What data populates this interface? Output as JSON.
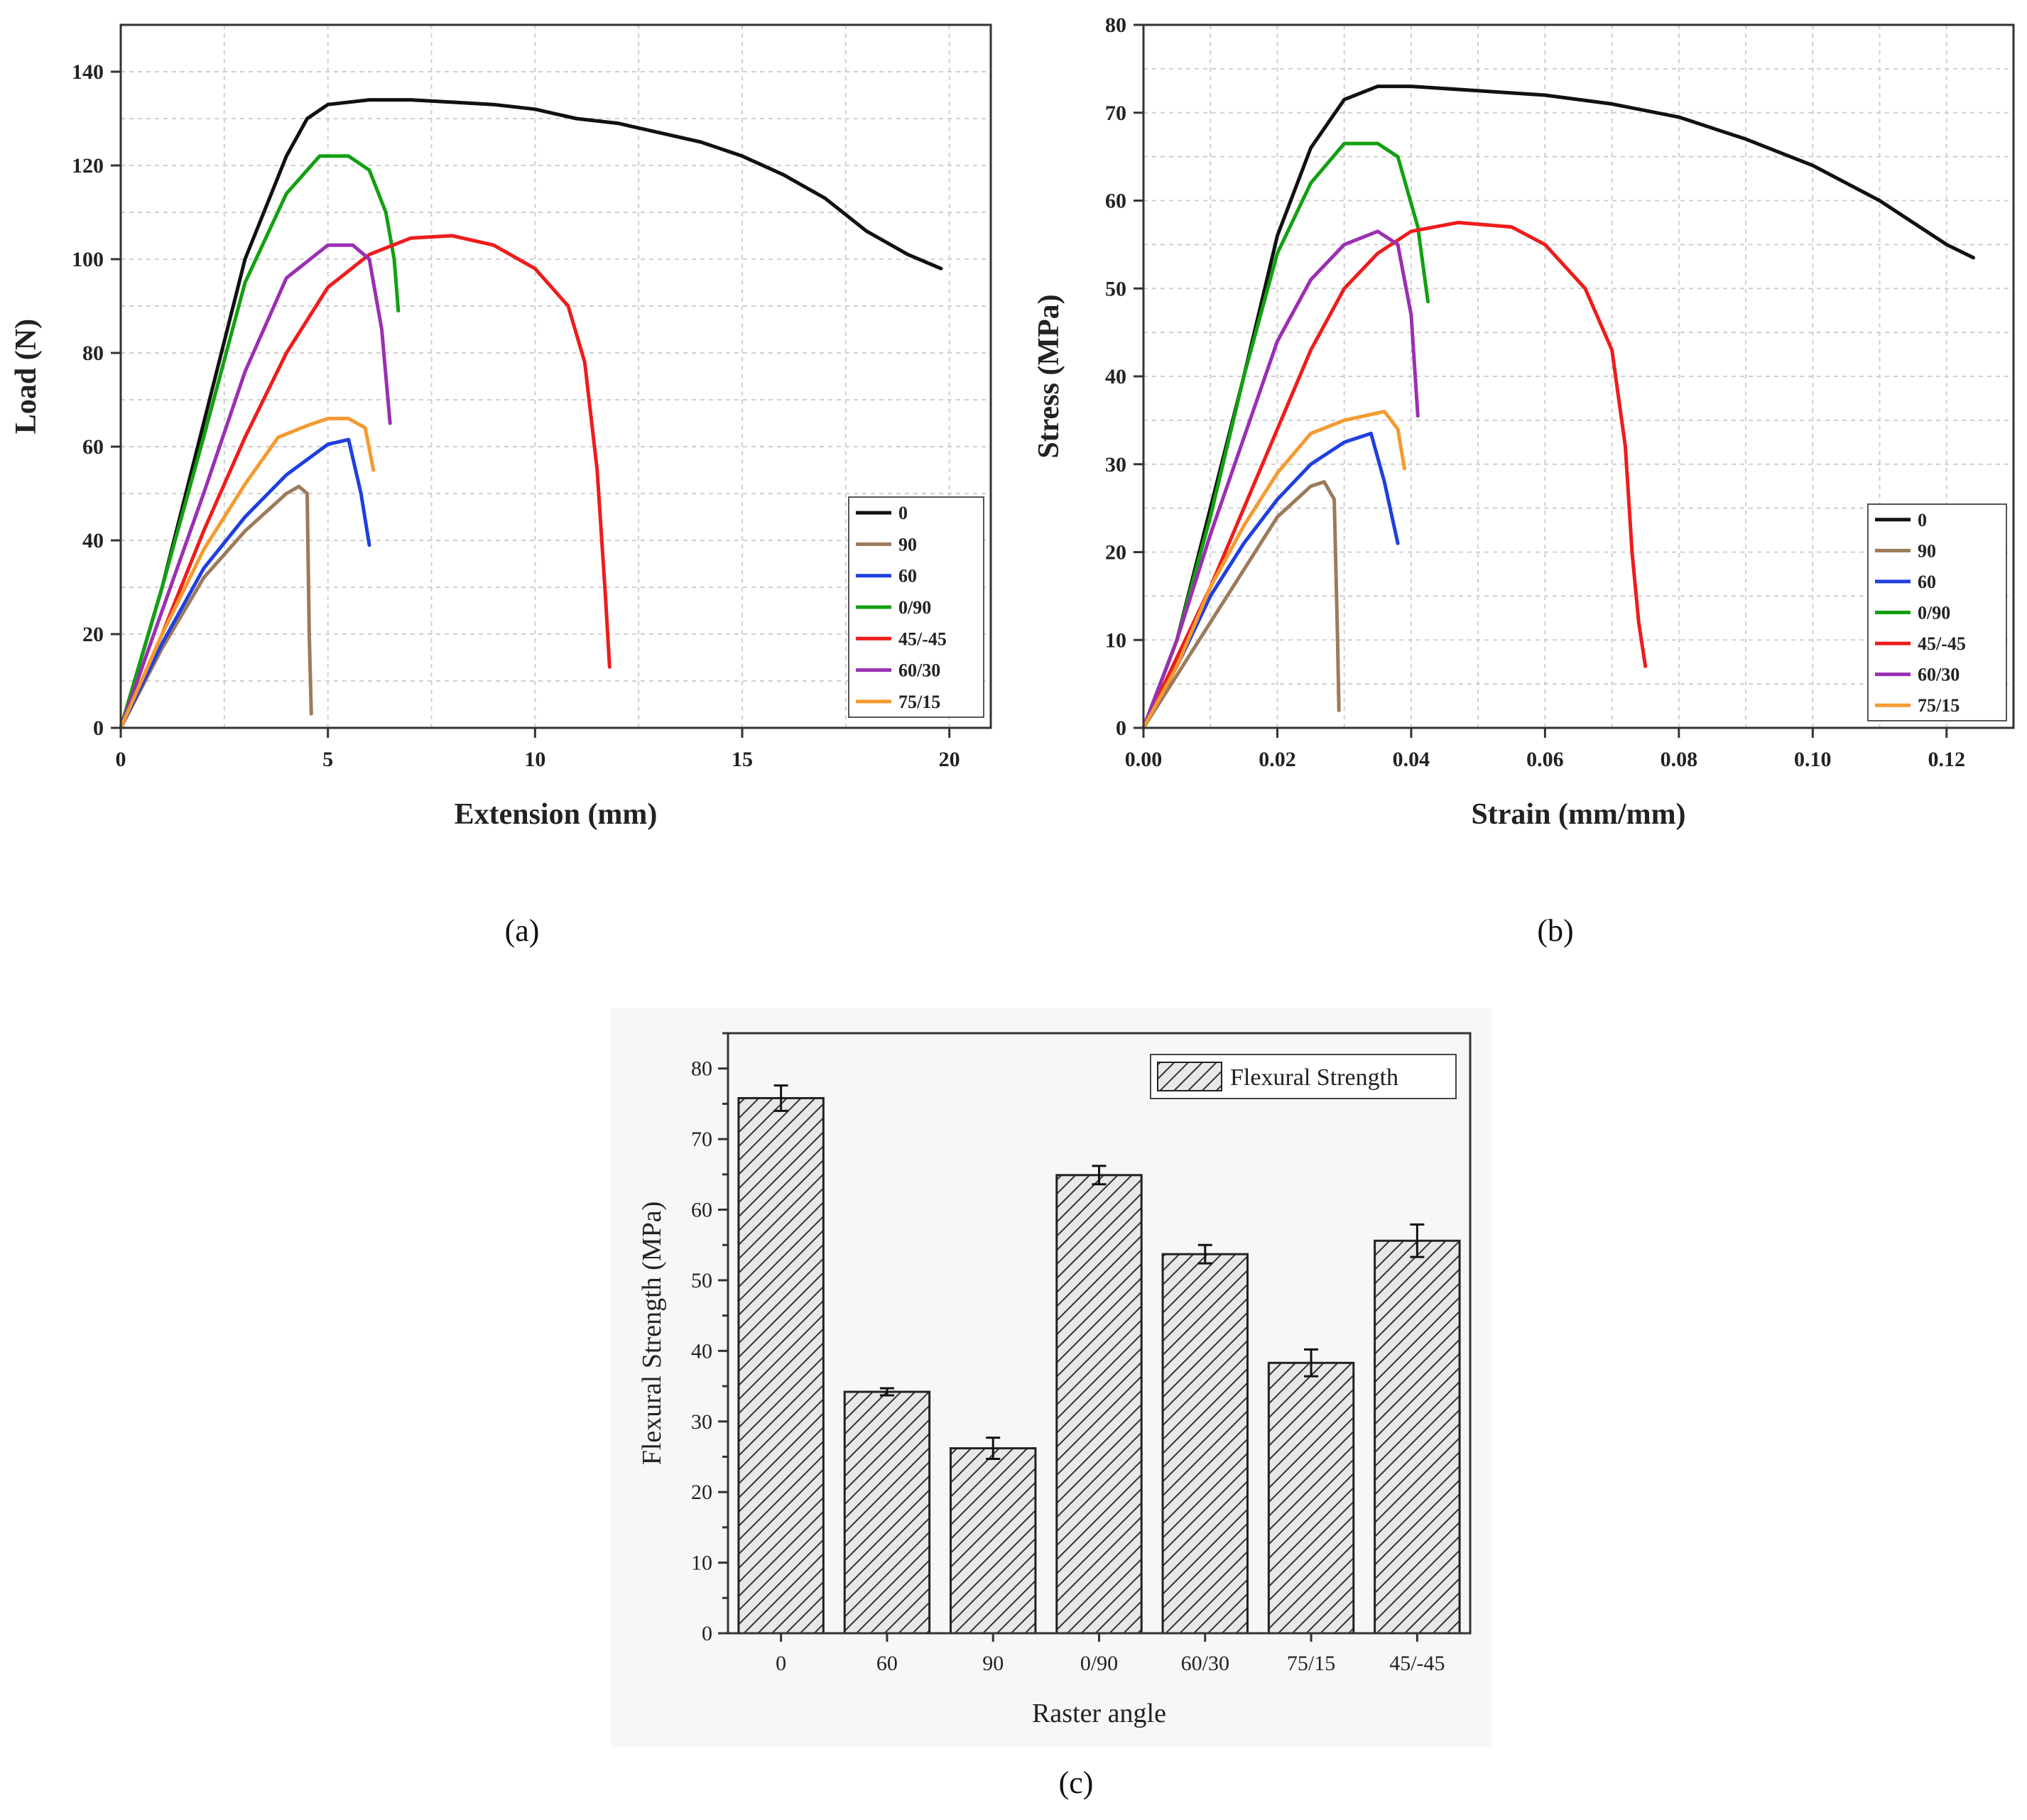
{
  "chart_data": [
    {
      "type": "line",
      "panel_label": "(a)",
      "xlabel": "Extension (mm)",
      "ylabel": "Load (N)",
      "xlim": [
        0,
        21
      ],
      "ylim": [
        0,
        150
      ],
      "xticks": [
        0,
        5,
        10,
        15,
        20
      ],
      "yticks": [
        0,
        20,
        40,
        60,
        80,
        100,
        120,
        140
      ],
      "grid": true,
      "legend_position": "bottom-right",
      "series": [
        {
          "name": "0",
          "color": "#111111",
          "x": [
            0,
            1,
            2,
            3,
            4,
            4.5,
            5,
            6,
            7,
            8,
            9,
            10,
            11,
            12,
            13,
            14,
            15,
            16,
            17,
            18,
            19,
            19.8
          ],
          "y": [
            0,
            30,
            65,
            100,
            122,
            130,
            133,
            134,
            134,
            133.5,
            133,
            132,
            130,
            129,
            127,
            125,
            122,
            118,
            113,
            106,
            101,
            98
          ]
        },
        {
          "name": "90",
          "color": "#9c7a5a",
          "x": [
            0,
            1,
            2,
            3,
            4,
            4.3,
            4.5,
            4.55,
            4.6
          ],
          "y": [
            0,
            17,
            32,
            42,
            50,
            51.5,
            50,
            20,
            3
          ]
        },
        {
          "name": "60",
          "color": "#1f3fe0",
          "x": [
            0,
            1,
            2,
            3,
            4,
            5,
            5.5,
            5.8,
            6.0
          ],
          "y": [
            0,
            18,
            34,
            45,
            54,
            60.5,
            61.5,
            50,
            39
          ]
        },
        {
          "name": "0/90",
          "color": "#12a012",
          "x": [
            0,
            1,
            2,
            3,
            4,
            4.8,
            5.5,
            6.0,
            6.4,
            6.6,
            6.7
          ],
          "y": [
            0,
            30,
            62,
            95,
            114,
            122,
            122,
            119,
            110,
            100,
            89
          ]
        },
        {
          "name": "45/-45",
          "color": "#ee1c1c",
          "x": [
            0,
            1,
            2,
            3,
            4,
            5,
            6,
            7,
            8,
            9,
            10,
            10.8,
            11.2,
            11.5,
            11.7,
            11.8
          ],
          "y": [
            0,
            20,
            42,
            62,
            80,
            94,
            101,
            104.5,
            105,
            103,
            98,
            90,
            78,
            55,
            28,
            13
          ]
        },
        {
          "name": "60/30",
          "color": "#9b2fb2",
          "x": [
            0,
            1,
            2,
            3,
            4,
            5,
            5.6,
            6.0,
            6.3,
            6.5
          ],
          "y": [
            0,
            25,
            50,
            76,
            96,
            103,
            103,
            100,
            85,
            65
          ]
        },
        {
          "name": "75/15",
          "color": "#f59a30",
          "x": [
            0,
            1,
            2,
            3,
            3.8,
            4.5,
            5,
            5.5,
            5.9,
            6.1
          ],
          "y": [
            0,
            20,
            38,
            52,
            62,
            64.5,
            66,
            66,
            64,
            55
          ]
        }
      ]
    },
    {
      "type": "line",
      "panel_label": "(b)",
      "xlabel": "Strain (mm/mm)",
      "ylabel": "Stress (MPa)",
      "xlim": [
        0,
        0.13
      ],
      "ylim": [
        0,
        80
      ],
      "xticks": [
        "0.00",
        "0.02",
        "0.04",
        "0.06",
        "0.08",
        "0.10",
        "0.12"
      ],
      "yticks": [
        0,
        10,
        20,
        30,
        40,
        50,
        60,
        70,
        80
      ],
      "grid": true,
      "legend_position": "bottom-right",
      "series": [
        {
          "name": "0",
          "color": "#111111",
          "x": [
            0,
            0.005,
            0.01,
            0.015,
            0.02,
            0.025,
            0.03,
            0.035,
            0.04,
            0.05,
            0.06,
            0.07,
            0.08,
            0.09,
            0.1,
            0.11,
            0.12,
            0.124
          ],
          "y": [
            0,
            10,
            25,
            40,
            56,
            66,
            71.5,
            73,
            73,
            72.5,
            72,
            71,
            69.5,
            67,
            64,
            60,
            55,
            53.5
          ]
        },
        {
          "name": "90",
          "color": "#9c7a5a",
          "x": [
            0,
            0.005,
            0.01,
            0.015,
            0.02,
            0.025,
            0.027,
            0.0285,
            0.029,
            0.0292
          ],
          "y": [
            0,
            6,
            12,
            18,
            24,
            27.5,
            28,
            26,
            10,
            2
          ]
        },
        {
          "name": "60",
          "color": "#1f3fe0",
          "x": [
            0,
            0.005,
            0.01,
            0.015,
            0.02,
            0.025,
            0.03,
            0.034,
            0.036,
            0.038
          ],
          "y": [
            0,
            7,
            15,
            21,
            26,
            30,
            32.5,
            33.5,
            28,
            21
          ]
        },
        {
          "name": "0/90",
          "color": "#12a012",
          "x": [
            0,
            0.005,
            0.01,
            0.015,
            0.02,
            0.025,
            0.03,
            0.035,
            0.038,
            0.041,
            0.0425
          ],
          "y": [
            0,
            10,
            24,
            40,
            54,
            62,
            66.5,
            66.5,
            65,
            57,
            48.5
          ]
        },
        {
          "name": "45/-45",
          "color": "#ee1c1c",
          "x": [
            0,
            0.005,
            0.01,
            0.015,
            0.02,
            0.025,
            0.03,
            0.035,
            0.04,
            0.047,
            0.055,
            0.06,
            0.066,
            0.07,
            0.072,
            0.073,
            0.074,
            0.075
          ],
          "y": [
            0,
            8,
            16,
            25,
            34,
            43,
            50,
            54,
            56.5,
            57.5,
            57,
            55,
            50,
            43,
            32,
            20,
            12,
            7
          ]
        },
        {
          "name": "60/30",
          "color": "#9b2fb2",
          "x": [
            0,
            0.005,
            0.01,
            0.015,
            0.02,
            0.025,
            0.03,
            0.035,
            0.038,
            0.04,
            0.041
          ],
          "y": [
            0,
            10,
            22,
            33,
            44,
            51,
            55,
            56.5,
            55,
            47,
            35.5
          ]
        },
        {
          "name": "75/15",
          "color": "#f59a30",
          "x": [
            0,
            0.005,
            0.01,
            0.015,
            0.02,
            0.025,
            0.03,
            0.036,
            0.038,
            0.039
          ],
          "y": [
            0,
            7,
            16,
            23,
            29,
            33.5,
            35,
            36,
            34,
            29.5
          ]
        }
      ]
    },
    {
      "type": "bar",
      "panel_label": "(c)",
      "xlabel": "Raster angle",
      "ylabel": "Flexural Strength (MPa)",
      "categories": [
        "0",
        "60",
        "90",
        "0/90",
        "60/30",
        "75/15",
        "45/-45"
      ],
      "values": [
        75.8,
        34.2,
        26.2,
        64.9,
        53.7,
        38.3,
        55.6
      ],
      "errors": [
        1.8,
        0.5,
        1.5,
        1.3,
        1.3,
        1.9,
        2.3
      ],
      "ylim": [
        0,
        85
      ],
      "yticks": [
        0,
        10,
        20,
        30,
        40,
        50,
        60,
        70,
        80
      ],
      "legend": [
        "Flexural Strength"
      ],
      "legend_position": "top-right",
      "fill": "hatched",
      "grid": false
    }
  ]
}
